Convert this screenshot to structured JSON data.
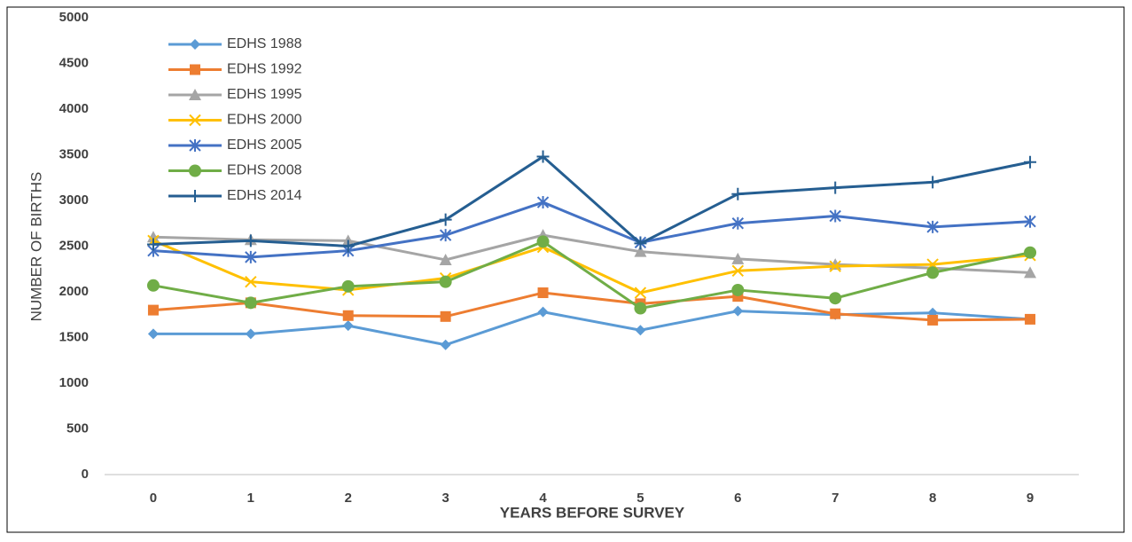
{
  "chart_data": {
    "type": "line",
    "y_label": "NUMBER  OF BIRTHS",
    "x_label": "YEARS BEFORE SURVEY",
    "categories": [
      "0",
      "1",
      "2",
      "3",
      "4",
      "5",
      "6",
      "7",
      "8",
      "9"
    ],
    "ylim": [
      0,
      5000
    ],
    "yticks": [
      0,
      500,
      1000,
      1500,
      2000,
      2500,
      3000,
      3500,
      4000,
      4500,
      5000
    ],
    "grid": false,
    "legend": "top-left",
    "series": [
      {
        "name": "EDHS 1988",
        "color": "#5B9BD5",
        "marker": "diamond",
        "values": [
          1540,
          1540,
          1630,
          1420,
          1780,
          1580,
          1790,
          1750,
          1770,
          1700
        ]
      },
      {
        "name": "EDHS 1992",
        "color": "#ED7D31",
        "marker": "square",
        "values": [
          1800,
          1880,
          1740,
          1730,
          1990,
          1870,
          1950,
          1760,
          1690,
          1700
        ]
      },
      {
        "name": "EDHS 1995",
        "color": "#A5A5A5",
        "marker": "triangle",
        "values": [
          2600,
          2570,
          2560,
          2350,
          2620,
          2440,
          2360,
          2300,
          2260,
          2210
        ]
      },
      {
        "name": "EDHS 2000",
        "color": "#FFC000",
        "marker": "x",
        "values": [
          2560,
          2110,
          2020,
          2150,
          2490,
          1990,
          2230,
          2280,
          2300,
          2400
        ]
      },
      {
        "name": "EDHS 2005",
        "color": "#4472C4",
        "marker": "star",
        "values": [
          2450,
          2380,
          2450,
          2620,
          2980,
          2540,
          2750,
          2830,
          2710,
          2770
        ]
      },
      {
        "name": "EDHS 2008",
        "color": "#70AD47",
        "marker": "circle",
        "values": [
          2070,
          1880,
          2060,
          2110,
          2550,
          1820,
          2020,
          1930,
          2210,
          2430
        ]
      },
      {
        "name": "EDHS 2014",
        "color": "#255E91",
        "marker": "plus",
        "values": [
          2520,
          2560,
          2500,
          2790,
          3480,
          2530,
          3070,
          3140,
          3200,
          3420
        ]
      }
    ]
  }
}
